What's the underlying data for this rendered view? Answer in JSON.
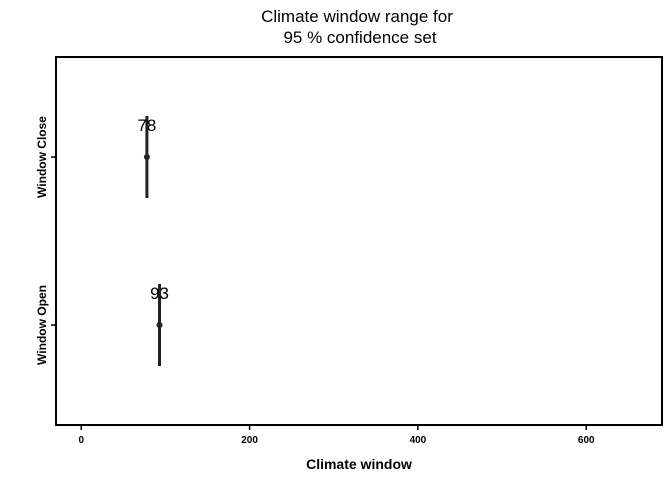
{
  "chart_data": {
    "type": "interval",
    "title_lines": [
      "Climate window range for",
      "95 % confidence set"
    ],
    "xlabel": "Climate window",
    "ylabel": "",
    "xlim": [
      -30,
      690
    ],
    "x_ticks": [
      0,
      200,
      400,
      600
    ],
    "grid": false,
    "legend": "none",
    "rows": [
      {
        "name": "Window Open",
        "median": 93,
        "min": 93,
        "max": 93,
        "label": "93"
      },
      {
        "name": "Window Close",
        "median": 78,
        "min": 78,
        "max": 78,
        "label": "78"
      }
    ],
    "colors": {
      "line": "#222222",
      "point": "#222222",
      "frame": "#000000"
    }
  }
}
